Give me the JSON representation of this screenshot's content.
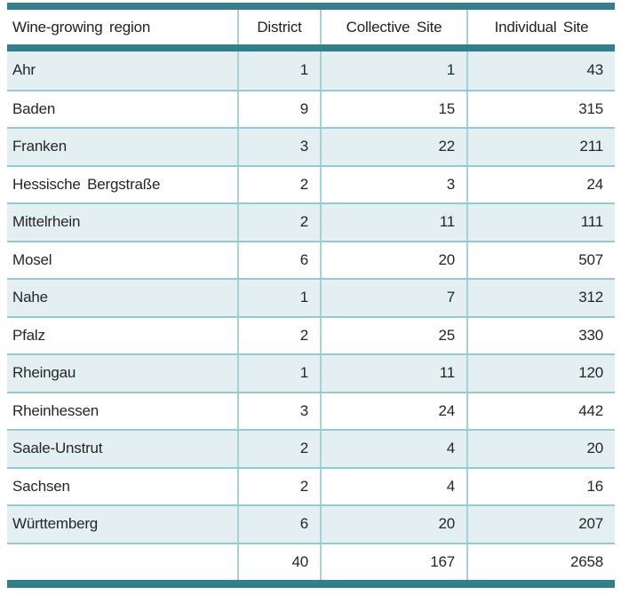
{
  "chart_data": {
    "type": "table",
    "columns": [
      "Wine-growing region",
      "District",
      "Collective Site",
      "Individual Site"
    ],
    "rows": [
      [
        "Ahr",
        "1",
        "1",
        "43"
      ],
      [
        "Baden",
        "9",
        "15",
        "315"
      ],
      [
        "Franken",
        "3",
        "22",
        "211"
      ],
      [
        "Hessische Bergstraße",
        "2",
        "3",
        "24"
      ],
      [
        "Mittelrhein",
        "2",
        "11",
        "111"
      ],
      [
        "Mosel",
        "6",
        "20",
        "507"
      ],
      [
        "Nahe",
        "1",
        "7",
        "312"
      ],
      [
        "Pfalz",
        "2",
        "25",
        "330"
      ],
      [
        "Rheingau",
        "1",
        "11",
        "120"
      ],
      [
        "Rheinhessen",
        "3",
        "24",
        "442"
      ],
      [
        "Saale-Unstrut",
        "2",
        "4",
        "20"
      ],
      [
        "Sachsen",
        "2",
        "4",
        "16"
      ],
      [
        "Württemberg",
        "6",
        "20",
        "207"
      ]
    ],
    "totals_row": [
      "",
      "40",
      "167",
      "2658"
    ],
    "layout": {
      "shaded_row_indices": "odd rows starting with first (Ahr, Franken, Mittelrhein, Nahe, Rheingau, Saale-Unstrut, Württemberg)",
      "accent_bars": [
        "top",
        "below-header",
        "bottom"
      ]
    }
  },
  "colors": {
    "accent_bar": "#337f8c",
    "row_alt_bg": "#e4eff1",
    "vertical_divider": "#a3d2da",
    "horizontal_divider": "#94cad4",
    "text": "#262626"
  }
}
